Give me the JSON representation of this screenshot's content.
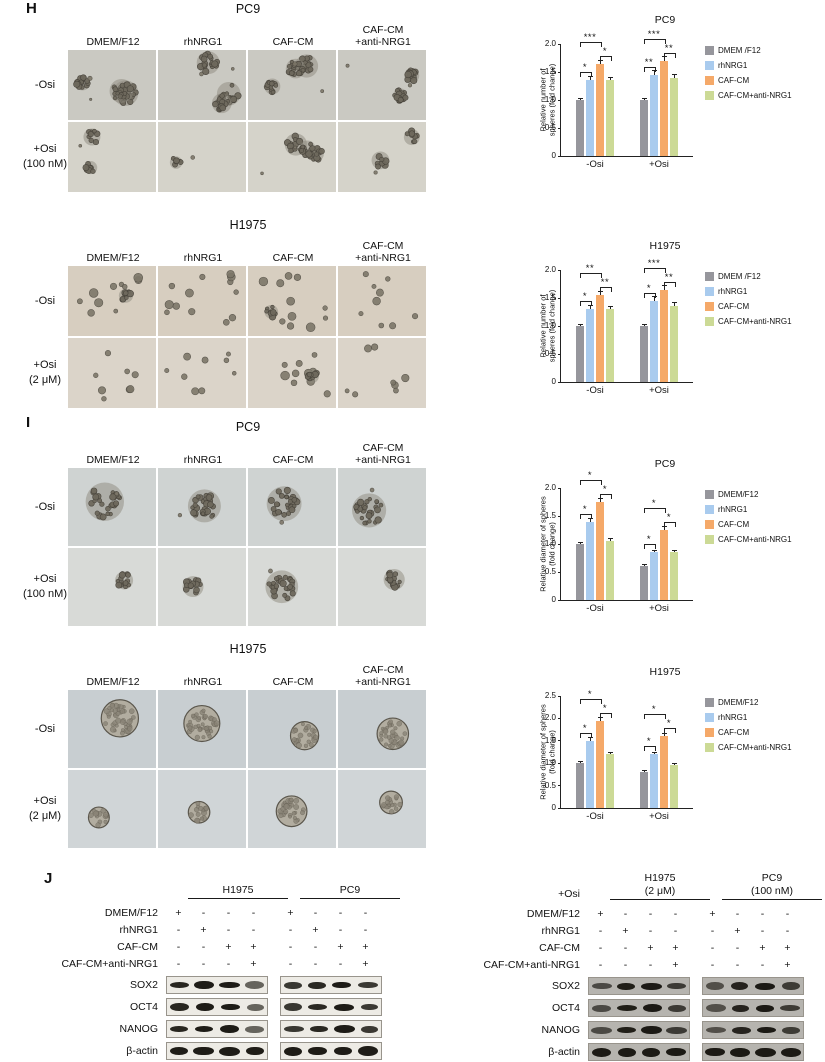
{
  "panel_labels": {
    "H": "H",
    "I": "I",
    "J": "J"
  },
  "colors": {
    "gray": "#96969c",
    "blue": "#a9cbee",
    "orange": "#f5a969",
    "green": "#ccda96"
  },
  "micro_sections": [
    {
      "panel": "H",
      "title": "PC9",
      "columns": [
        "DMEM/F12",
        "rhNRG1",
        "CAF-CM",
        "CAF-CM\n+anti-NRG1"
      ],
      "rows": [
        "-Osi",
        "+Osi\n(100 nM)"
      ]
    },
    {
      "panel": "H",
      "title": "H1975",
      "columns": [
        "DMEM/F12",
        "rhNRG1",
        "CAF-CM",
        "CAF-CM\n+anti-NRG1"
      ],
      "rows": [
        "-Osi",
        "+Osi\n(2 μM)"
      ]
    },
    {
      "panel": "I",
      "title": "PC9",
      "columns": [
        "DMEM/F12",
        "rhNRG1",
        "CAF-CM",
        "CAF-CM\n+anti-NRG1"
      ],
      "rows": [
        "-Osi",
        "+Osi\n(100 nM)"
      ]
    },
    {
      "panel": "I",
      "title": "H1975",
      "columns": [
        "DMEM/F12",
        "rhNRG1",
        "CAF-CM",
        "CAF-CM\n+anti-NRG1"
      ],
      "rows": [
        "-Osi",
        "+Osi\n(2 μM)"
      ]
    }
  ],
  "chart_data": [
    {
      "type": "bar",
      "title": "PC9",
      "ylabel": "Relative  number of\nspheres (fold change)",
      "categories": [
        "-Osi",
        "+Osi"
      ],
      "series": [
        {
          "name": "DMEM /F12",
          "color_key": "gray",
          "values": [
            1.0,
            1.0
          ],
          "errors": [
            0.04,
            0.04
          ]
        },
        {
          "name": "rhNRG1",
          "color_key": "blue",
          "values": [
            1.35,
            1.45
          ],
          "errors": [
            0.08,
            0.08
          ]
        },
        {
          "name": "CAF-CM",
          "color_key": "orange",
          "values": [
            1.65,
            1.7
          ],
          "errors": [
            0.07,
            0.09
          ]
        },
        {
          "name": "CAF-CM+anti-NRG1",
          "color_key": "green",
          "values": [
            1.35,
            1.4
          ],
          "errors": [
            0.06,
            0.06
          ]
        }
      ],
      "ylim": [
        0,
        2.0
      ],
      "yticks": [
        0,
        0.5,
        1.0,
        1.5,
        2.0
      ],
      "significance": [
        {
          "cat": 0,
          "from": 0,
          "to": 1,
          "label": "*",
          "tier": 1
        },
        {
          "cat": 0,
          "from": 2,
          "to": 3,
          "label": "*",
          "tier": 1
        },
        {
          "cat": 0,
          "from": 0,
          "to": 2,
          "label": "***",
          "tier": 2
        },
        {
          "cat": 1,
          "from": 0,
          "to": 1,
          "label": "**",
          "tier": 1
        },
        {
          "cat": 1,
          "from": 2,
          "to": 3,
          "label": "**",
          "tier": 1
        },
        {
          "cat": 1,
          "from": 0,
          "to": 2,
          "label": "***",
          "tier": 2
        }
      ]
    },
    {
      "type": "bar",
      "title": "H1975",
      "ylabel": "Relative  number of\nspheres (fold change)",
      "categories": [
        "-Osi",
        "+Osi"
      ],
      "series": [
        {
          "name": "DMEM /F12",
          "color_key": "gray",
          "values": [
            1.0,
            1.0
          ],
          "errors": [
            0.04,
            0.04
          ]
        },
        {
          "name": "rhNRG1",
          "color_key": "blue",
          "values": [
            1.3,
            1.45
          ],
          "errors": [
            0.07,
            0.08
          ]
        },
        {
          "name": "CAF-CM",
          "color_key": "orange",
          "values": [
            1.55,
            1.65
          ],
          "errors": [
            0.08,
            0.09
          ]
        },
        {
          "name": "CAF-CM+anti-NRG1",
          "color_key": "green",
          "values": [
            1.3,
            1.35
          ],
          "errors": [
            0.06,
            0.07
          ]
        }
      ],
      "ylim": [
        0,
        2.0
      ],
      "yticks": [
        0,
        0.5,
        1.0,
        1.5,
        2.0
      ],
      "significance": [
        {
          "cat": 0,
          "from": 0,
          "to": 1,
          "label": "*",
          "tier": 1
        },
        {
          "cat": 0,
          "from": 2,
          "to": 3,
          "label": "**",
          "tier": 1
        },
        {
          "cat": 0,
          "from": 0,
          "to": 2,
          "label": "**",
          "tier": 2
        },
        {
          "cat": 1,
          "from": 0,
          "to": 1,
          "label": "*",
          "tier": 1
        },
        {
          "cat": 1,
          "from": 2,
          "to": 3,
          "label": "**",
          "tier": 1
        },
        {
          "cat": 1,
          "from": 0,
          "to": 2,
          "label": "***",
          "tier": 2
        }
      ]
    },
    {
      "type": "bar",
      "title": "PC9",
      "ylabel": "Relative diameter of spheres\n(fold change)",
      "categories": [
        "-Osi",
        "+Osi"
      ],
      "series": [
        {
          "name": "DMEM/F12",
          "color_key": "gray",
          "values": [
            1.0,
            0.6
          ],
          "errors": [
            0.04,
            0.04
          ]
        },
        {
          "name": "rhNRG1",
          "color_key": "blue",
          "values": [
            1.4,
            0.85
          ],
          "errors": [
            0.07,
            0.05
          ]
        },
        {
          "name": "CAF-CM",
          "color_key": "orange",
          "values": [
            1.75,
            1.25
          ],
          "errors": [
            0.08,
            0.07
          ]
        },
        {
          "name": "CAF-CM+anti-NRG1",
          "color_key": "green",
          "values": [
            1.05,
            0.85
          ],
          "errors": [
            0.05,
            0.05
          ]
        }
      ],
      "ylim": [
        0,
        2.0
      ],
      "yticks": [
        0,
        0.5,
        1.0,
        1.5,
        2.0
      ],
      "significance": [
        {
          "cat": 0,
          "from": 0,
          "to": 1,
          "label": "*",
          "tier": 1
        },
        {
          "cat": 0,
          "from": 2,
          "to": 3,
          "label": "*",
          "tier": 1
        },
        {
          "cat": 0,
          "from": 0,
          "to": 2,
          "label": "*",
          "tier": 2
        },
        {
          "cat": 1,
          "from": 0,
          "to": 1,
          "label": "*",
          "tier": 1
        },
        {
          "cat": 1,
          "from": 2,
          "to": 3,
          "label": "*",
          "tier": 1
        },
        {
          "cat": 1,
          "from": 0,
          "to": 2,
          "label": "*",
          "tier": 2
        }
      ]
    },
    {
      "type": "bar",
      "title": "H1975",
      "ylabel": "Relative diameter of spheres\n(fold change)",
      "categories": [
        "-Osi",
        "+Osi"
      ],
      "series": [
        {
          "name": "DMEM/F12",
          "color_key": "gray",
          "values": [
            1.0,
            0.8
          ],
          "errors": [
            0.04,
            0.04
          ]
        },
        {
          "name": "rhNRG1",
          "color_key": "blue",
          "values": [
            1.5,
            1.2
          ],
          "errors": [
            0.08,
            0.06
          ]
        },
        {
          "name": "CAF-CM",
          "color_key": "orange",
          "values": [
            1.95,
            1.6
          ],
          "errors": [
            0.09,
            0.08
          ]
        },
        {
          "name": "CAF-CM+anti-NRG1",
          "color_key": "green",
          "values": [
            1.2,
            0.95
          ],
          "errors": [
            0.06,
            0.05
          ]
        }
      ],
      "ylim": [
        0,
        2.5
      ],
      "yticks": [
        0,
        0.5,
        1.0,
        1.5,
        2.0,
        2.5
      ],
      "significance": [
        {
          "cat": 0,
          "from": 0,
          "to": 1,
          "label": "*",
          "tier": 1
        },
        {
          "cat": 0,
          "from": 2,
          "to": 3,
          "label": "*",
          "tier": 1
        },
        {
          "cat": 0,
          "from": 0,
          "to": 2,
          "label": "*",
          "tier": 2
        },
        {
          "cat": 1,
          "from": 0,
          "to": 1,
          "label": "*",
          "tier": 1
        },
        {
          "cat": 1,
          "from": 2,
          "to": 3,
          "label": "*",
          "tier": 1
        },
        {
          "cat": 1,
          "from": 0,
          "to": 2,
          "label": "*",
          "tier": 2
        }
      ]
    }
  ],
  "blots": {
    "left": {
      "osi_label": "",
      "groups": [
        {
          "name": "H1975",
          "sub": ""
        },
        {
          "name": "PC9",
          "sub": ""
        }
      ],
      "treatments": [
        {
          "label": "DMEM/F12",
          "signs": [
            "+",
            "-",
            "-",
            "-"
          ]
        },
        {
          "label": "rhNRG1",
          "signs": [
            "-",
            "+",
            "-",
            "-"
          ]
        },
        {
          "label": "CAF-CM",
          "signs": [
            "-",
            "-",
            "+",
            "+"
          ]
        },
        {
          "label": "CAF-CM+anti-NRG1",
          "signs": [
            "-",
            "-",
            "-",
            "+"
          ]
        }
      ],
      "proteins": [
        "SOX2",
        "OCT4",
        "NANOG",
        "β-actin"
      ]
    },
    "right": {
      "osi_label": "+Osi",
      "groups": [
        {
          "name": "H1975",
          "sub": "(2 μM)"
        },
        {
          "name": "PC9",
          "sub": "(100 nM)"
        }
      ],
      "treatments": [
        {
          "label": "DMEM/F12",
          "signs": [
            "+",
            "-",
            "-",
            "-"
          ]
        },
        {
          "label": "rhNRG1",
          "signs": [
            "-",
            "+",
            "-",
            "-"
          ]
        },
        {
          "label": "CAF-CM",
          "signs": [
            "-",
            "-",
            "+",
            "+"
          ]
        },
        {
          "label": "CAF-CM+anti-NRG1",
          "signs": [
            "-",
            "-",
            "-",
            "+"
          ]
        }
      ],
      "proteins": [
        "SOX2",
        "OCT4",
        "NANOG",
        "β-actin"
      ]
    }
  }
}
